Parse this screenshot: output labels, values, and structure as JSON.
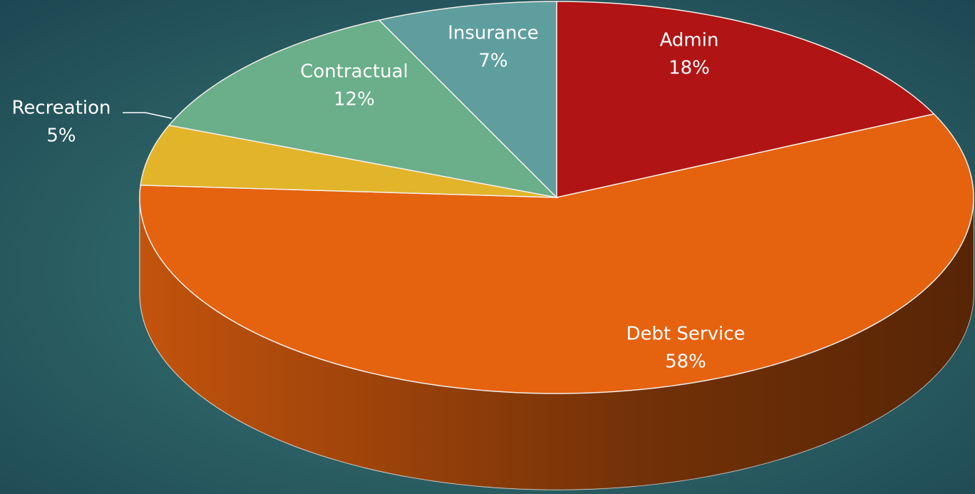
{
  "chart_data": {
    "type": "pie",
    "categories": [
      "Admin",
      "Debt Service",
      "Recreation",
      "Contractual",
      "Insurance"
    ],
    "values": [
      18,
      58,
      5,
      12,
      7
    ],
    "value_labels": [
      "18%",
      "58%",
      "5%",
      "12%",
      "7%"
    ],
    "colors": [
      "#b01414",
      "#e5620f",
      "#e2b42a",
      "#6aae8a",
      "#5f9e9e"
    ]
  }
}
